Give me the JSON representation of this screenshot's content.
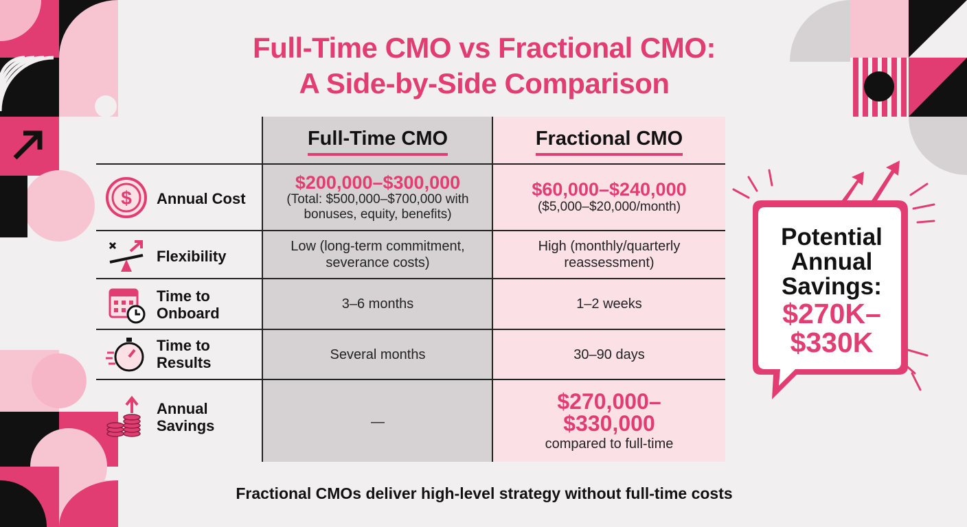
{
  "title": {
    "line1": "Full-Time CMO vs Fractional CMO:",
    "line2": "A Side-by-Side Comparison"
  },
  "table": {
    "headers": {
      "full_time": "Full-Time CMO",
      "fractional": "Fractional CMO"
    },
    "rows": [
      {
        "icon": "dollar-coin-icon",
        "label": "Annual Cost",
        "full_time": {
          "main": "$200,000–$300,000",
          "sub": "(Total: $500,000–$700,000 with bonuses, equity, benefits)"
        },
        "fractional": {
          "main": "$60,000–$240,000",
          "sub": "($5,000–$20,000/month)"
        }
      },
      {
        "icon": "seesaw-arrow-icon",
        "label": "Flexibility",
        "full_time": "Low (long-term commitment, severance costs)",
        "fractional": "High (monthly/quarterly reassessment)"
      },
      {
        "icon": "calendar-clock-icon",
        "label_line1": "Time to",
        "label_line2": "Onboard",
        "full_time": "3–6 months",
        "fractional": "1–2 weeks"
      },
      {
        "icon": "stopwatch-icon",
        "label_line1": "Time to",
        "label_line2": "Results",
        "full_time": "Several months",
        "fractional": "30–90 days"
      },
      {
        "icon": "coin-stack-arrow-icon",
        "label_line1": "Annual",
        "label_line2": "Savings",
        "full_time": "—",
        "fractional": {
          "main_line1": "$270,000–",
          "main_line2": "$330,000",
          "sub": "compared to full-time"
        }
      }
    ]
  },
  "callout": {
    "line1": "Potential",
    "line2": "Annual",
    "line3": "Savings:",
    "value_line1": "$270K–",
    "value_line2": "$330K"
  },
  "footer": "Fractional CMOs deliver high-level strategy without full-time costs",
  "colors": {
    "accent": "#e23d72",
    "light_pink": "#fbe0e6",
    "gray_column": "#d6d1d2",
    "background": "#f2eff0"
  }
}
